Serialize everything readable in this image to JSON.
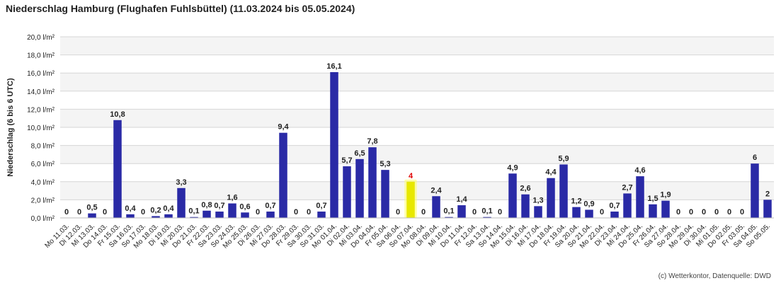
{
  "chart_data": {
    "type": "bar",
    "title": "Niederschlag Hamburg (Flughafen Fuhlsbüttel) (11.03.2024 bis 05.05.2024)",
    "ylabel": "Niederschlag (6 bis 6 UTC)",
    "credit": "(c) Wetterkontor, Datenquelle: DWD",
    "ylim": [
      0,
      20
    ],
    "yticks": [
      "0,0 l/m²",
      "2,0 l/m²",
      "4,0 l/m²",
      "6,0 l/m²",
      "8,0 l/m²",
      "10,0 l/m²",
      "12,0 l/m²",
      "14,0 l/m²",
      "16,0 l/m²",
      "18,0 l/m²",
      "20,0 l/m²"
    ],
    "grid": "horizontal, alternating bands",
    "bar_color": "#2a2aa6",
    "highlight_color": "#e8e800",
    "highlight_label_color": "#e00000",
    "highlight_index": 27,
    "categories": [
      "Mo 11.03.",
      "Di 12.03.",
      "Mi 13.03.",
      "Do 14.03.",
      "Fr 15.03.",
      "Sa 16.03.",
      "So 17.03.",
      "Mo 18.03.",
      "Di 19.03.",
      "Mi 20.03.",
      "Do 21.03.",
      "Fr 22.03.",
      "Sa 23.03.",
      "So 24.03.",
      "Mo 25.03.",
      "Di 26.03.",
      "Mi 27.03.",
      "Do 28.03.",
      "Fr 29.03.",
      "Sa 30.03.",
      "So 31.03.",
      "Mo 01.04.",
      "Di 02.04.",
      "Mi 03.04.",
      "Do 04.04.",
      "Fr 05.04.",
      "Sa 06.04.",
      "So 07.04.",
      "Mo 08.04.",
      "Di 09.04.",
      "Mi 10.04.",
      "Do 11.04.",
      "Fr 12.04.",
      "Sa 13.04.",
      "So 14.04.",
      "Mo 15.04.",
      "Di 16.04.",
      "Mi 17.04.",
      "Do 18.04.",
      "Fr 19.04.",
      "Sa 20.04.",
      "So 21.04.",
      "Mo 22.04.",
      "Di 23.04.",
      "Mi 24.04.",
      "Do 25.04.",
      "Fr 26.04.",
      "Sa 27.04.",
      "So 28.04.",
      "Mo 29.04.",
      "Di 30.04.",
      "Mi 01.05.",
      "Do 02.05.",
      "Fr 03.05.",
      "Sa 04.05.",
      "So 05.05."
    ],
    "values": [
      0,
      0,
      0.5,
      0,
      10.8,
      0.4,
      0,
      0.2,
      0.4,
      3.3,
      0.1,
      0.8,
      0.7,
      1.6,
      0.6,
      0,
      0.7,
      9.4,
      0,
      0,
      0.7,
      16.1,
      5.7,
      6.5,
      7.8,
      5.3,
      0,
      4,
      0,
      2.4,
      0.1,
      1.4,
      0,
      0.1,
      0,
      4.9,
      2.6,
      1.3,
      4.4,
      5.9,
      1.2,
      0.9,
      0,
      0.7,
      2.7,
      4.6,
      1.5,
      1.9,
      0,
      0,
      0,
      0,
      0,
      0,
      6,
      2
    ],
    "value_labels": [
      "0",
      "0",
      "0,5",
      "0",
      "10,8",
      "0,4",
      "0",
      "0,2",
      "0,4",
      "3,3",
      "0,1",
      "0,8",
      "0,7",
      "1,6",
      "0,6",
      "0",
      "0,7",
      "9,4",
      "0",
      "0",
      "0,7",
      "16,1",
      "5,7",
      "6,5",
      "7,8",
      "5,3",
      "0",
      "4",
      "0",
      "2,4",
      "0,1",
      "1,4",
      "0",
      "0,1",
      "0",
      "4,9",
      "2,6",
      "1,3",
      "4,4",
      "5,9",
      "1,2",
      "0,9",
      "0",
      "0,7",
      "2,7",
      "4,6",
      "1,5",
      "1,9",
      "0",
      "0",
      "0",
      "0",
      "0",
      "0",
      "6",
      "2"
    ]
  }
}
